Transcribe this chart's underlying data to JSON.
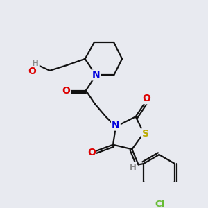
{
  "bg_color": "#e8eaf0",
  "atom_colors": {
    "N": "#0000dd",
    "O": "#dd0000",
    "S": "#bbaa00",
    "Cl": "#66bb33",
    "H": "#888888"
  },
  "bond_color": "#111111",
  "bond_width": 1.6
}
